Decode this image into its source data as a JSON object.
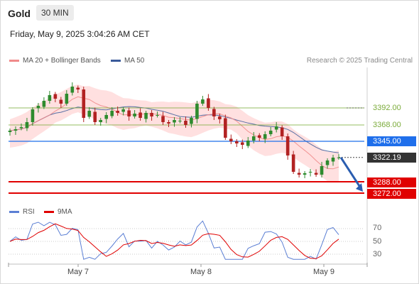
{
  "header": {
    "asset": "Gold",
    "timeframe": "30 MIN",
    "datetime": "Friday, May 9, 2025 3:04:26 AM CET"
  },
  "legend": {
    "ma20": "MA 20 + Bollinger Bands",
    "ma50": "MA 50",
    "rsi": "RSI",
    "rsi_ma": "9MA"
  },
  "credit": "Research © 2025 Trading Central",
  "colors": {
    "ma20": "#f08a8a",
    "ma50": "#3a5a9a",
    "band": "#ffd6d6",
    "candle_up": "#2e8b2e",
    "candle_down": "#b22222",
    "resistance": "#7bab3a",
    "pivot": "#1f6feb",
    "support": "#e00000",
    "last_price": "#333333",
    "rsi": "#5b7fd4",
    "rsi_ma": "#e00000"
  },
  "chart_data": {
    "type": "candlestick",
    "x_tick_labels": [
      "May 7",
      "May 8",
      "May 9"
    ],
    "price_levels": {
      "resistance": [
        "3392.00",
        "3368.00"
      ],
      "pivot": "3345.00",
      "last_price": "3322.19",
      "support": [
        "3288.00",
        "3272.00"
      ]
    },
    "close_path": [
      3360,
      3362,
      3365,
      3372,
      3390,
      3395,
      3402,
      3410,
      3405,
      3398,
      3412,
      3422,
      3418,
      3378,
      3388,
      3372,
      3375,
      3382,
      3388,
      3385,
      3390,
      3380,
      3384,
      3378,
      3385,
      3380,
      3382,
      3372,
      3370,
      3375,
      3374,
      3368,
      3378,
      3398,
      3404,
      3392,
      3380,
      3376,
      3350,
      3345,
      3342,
      3340,
      3346,
      3352,
      3350,
      3355,
      3360,
      3366,
      3352,
      3325,
      3302,
      3298,
      3300,
      3302,
      3298,
      3310,
      3318,
      3322,
      3322.19
    ],
    "forecast_arrow": {
      "from": "3322.19",
      "to": "3272.00"
    },
    "rsi": {
      "y_ticks": [
        70,
        50,
        30
      ]
    }
  }
}
